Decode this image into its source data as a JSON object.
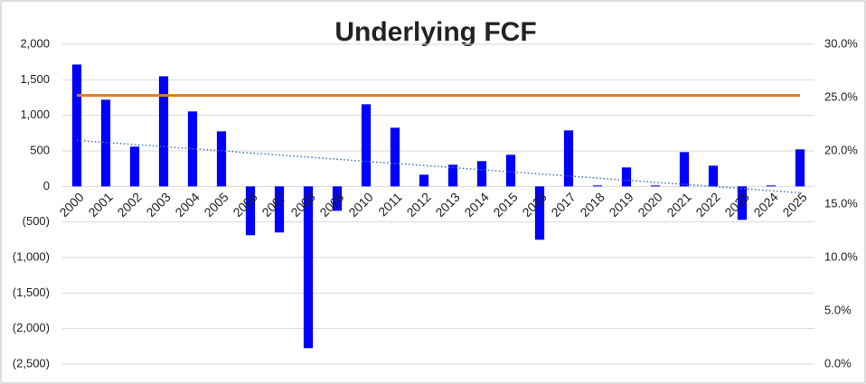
{
  "chart_data": {
    "type": "bar",
    "title": "Underlying FCF",
    "categories": [
      "2000",
      "2001",
      "2002",
      "2003",
      "2004",
      "2005",
      "2006",
      "2007",
      "2008",
      "2009",
      "2010",
      "2011",
      "2012",
      "2013",
      "2014",
      "2015",
      "2016",
      "2017",
      "2018",
      "2019",
      "2020",
      "2021",
      "2022",
      "2023",
      "2024",
      "2025"
    ],
    "series": [
      {
        "type": "bar",
        "color": "#0000ff",
        "values": [
          1715,
          1220,
          560,
          1550,
          1055,
          775,
          -686,
          -648,
          -2275,
          -343,
          1156,
          826,
          165,
          305,
          356,
          445,
          -750,
          788,
          13,
          267,
          13,
          483,
          292,
          -470,
          13,
          521
        ]
      },
      {
        "type": "line",
        "axis": "y2",
        "color": "#e07b20",
        "values": [
          25.2,
          25.2,
          25.2,
          25.2,
          25.2,
          25.2,
          25.2,
          25.2,
          25.2,
          25.2,
          25.2,
          25.2,
          25.2,
          25.2,
          25.2,
          25.2,
          25.2,
          25.2,
          25.2,
          25.2,
          25.2,
          25.2,
          25.2,
          25.2,
          25.2,
          25.2
        ]
      },
      {
        "type": "line",
        "style": "dotted",
        "color": "#4472c4",
        "values": [
          648,
          619,
          589,
          560,
          530,
          501,
          471,
          442,
          412,
          383,
          353,
          324,
          294,
          265,
          235,
          206,
          176,
          147,
          117,
          88,
          58,
          29,
          -1,
          -30,
          -60,
          -89
        ]
      }
    ],
    "ylim": [
      -2500,
      2000
    ],
    "yticks": [
      {
        "value": -2500,
        "label": "(2,500)"
      },
      {
        "value": -2000,
        "label": "(2,000)"
      },
      {
        "value": -1500,
        "label": "(1,500)"
      },
      {
        "value": -1000,
        "label": "(1,000)"
      },
      {
        "value": -500,
        "label": "(500)"
      },
      0,
      500,
      {
        "value": 1000,
        "label": "1,000"
      },
      {
        "value": 1500,
        "label": "1,500"
      },
      {
        "value": 2000,
        "label": "2,000"
      }
    ],
    "y2lim": [
      0,
      30
    ],
    "y2ticks": [
      {
        "value": 0,
        "label": "0.0%"
      },
      {
        "value": 5,
        "label": "5.0%"
      },
      {
        "value": 10,
        "label": "10.0%"
      },
      {
        "value": 15,
        "label": "15.0%"
      },
      {
        "value": 20,
        "label": "20.0%"
      },
      {
        "value": 25,
        "label": "25.0%"
      },
      {
        "value": 30,
        "label": "30.0%"
      }
    ],
    "grid": true
  }
}
